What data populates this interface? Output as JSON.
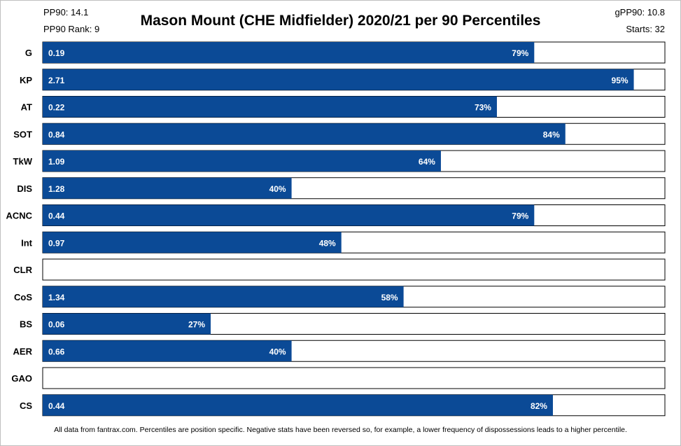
{
  "header": {
    "pp90": "PP90: 14.1",
    "pp90_rank": "PP90 Rank: 9",
    "gpp90": "gPP90: 10.8",
    "starts": "Starts: 32"
  },
  "footnote": "All data from fantrax.com. Percentiles are position specific. Negative stats have been reversed so, for example, a lower frequency of dispossessions leads to a higher percentile.",
  "colors": {
    "bar": "#0b4a96",
    "track_border": "#000000",
    "label": "#ffffff"
  },
  "chart_data": {
    "type": "bar",
    "orientation": "horizontal",
    "title": "Mason Mount (CHE Midfielder) 2020/21 per 90 Percentiles",
    "xlim": [
      0,
      100
    ],
    "grid": false,
    "categories": [
      "G",
      "KP",
      "AT",
      "SOT",
      "TkW",
      "DIS",
      "ACNC",
      "Int",
      "CLR",
      "CoS",
      "BS",
      "AER",
      "GAO",
      "CS"
    ],
    "per90_values": [
      "0.19",
      "2.71",
      "0.22",
      "0.84",
      "1.09",
      "1.28",
      "0.44",
      "0.97",
      null,
      "1.34",
      "0.06",
      "0.66",
      null,
      "0.44"
    ],
    "percentiles": [
      79,
      95,
      73,
      84,
      64,
      40,
      79,
      48,
      null,
      58,
      27,
      40,
      null,
      82
    ],
    "percentile_labels": [
      "79%",
      "95%",
      "73%",
      "84%",
      "64%",
      "40%",
      "79%",
      "48%",
      null,
      "58%",
      "27%",
      "40%",
      null,
      "82%"
    ]
  }
}
